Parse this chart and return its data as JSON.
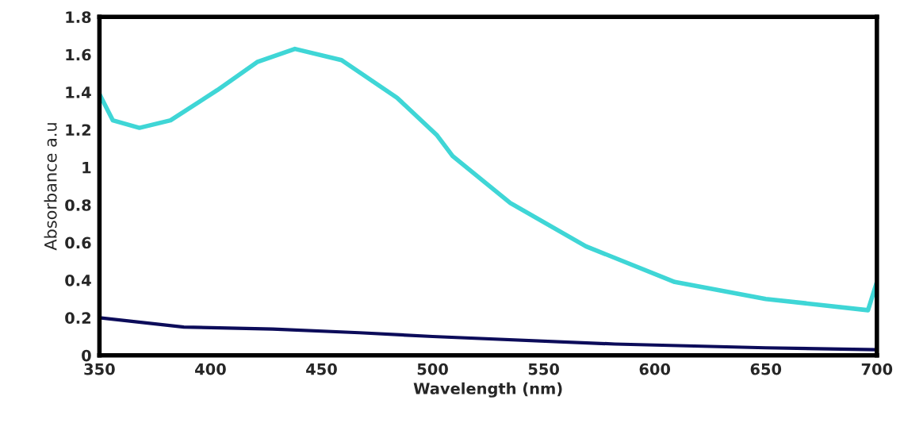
{
  "chart_data": {
    "type": "line",
    "xlabel": "Wavelength (nm)",
    "ylabel": "Absorbance a.u",
    "xlim": [
      350,
      700
    ],
    "ylim": [
      0,
      1.8
    ],
    "xticks": [
      350,
      400,
      450,
      500,
      550,
      600,
      650,
      700
    ],
    "yticks": [
      0,
      {
        "value": 0.2,
        "label": "0.2"
      },
      {
        "value": 0.4,
        "label": "0.4"
      },
      {
        "value": 0.6,
        "label": "0.6"
      },
      {
        "value": 0.8,
        "label": "0.8"
      },
      1,
      {
        "value": 1.2,
        "label": "1.2"
      },
      {
        "value": 1.4,
        "label": "1.4"
      },
      {
        "value": 1.6,
        "label": "1.6"
      },
      {
        "value": 1.8,
        "label": "1.8"
      }
    ],
    "grid": false,
    "legend": false,
    "marker": "none",
    "line_style": "solid",
    "series": [
      {
        "color": "#3fd6d6",
        "x": [
          350,
          356,
          368,
          382,
          403,
          421,
          438,
          459,
          484,
          502,
          509,
          535,
          569,
          609,
          650,
          696,
          700
        ],
        "values": [
          1.39,
          1.25,
          1.21,
          1.25,
          1.41,
          1.56,
          1.63,
          1.57,
          1.37,
          1.17,
          1.06,
          0.81,
          0.58,
          0.39,
          0.3,
          0.24,
          0.39
        ]
      },
      {
        "color": "#0c0c5a",
        "x": [
          350,
          388,
          428,
          467,
          500,
          582,
          650,
          700
        ],
        "values": [
          0.2,
          0.15,
          0.14,
          0.12,
          0.1,
          0.06,
          0.04,
          0.03
        ]
      }
    ]
  }
}
